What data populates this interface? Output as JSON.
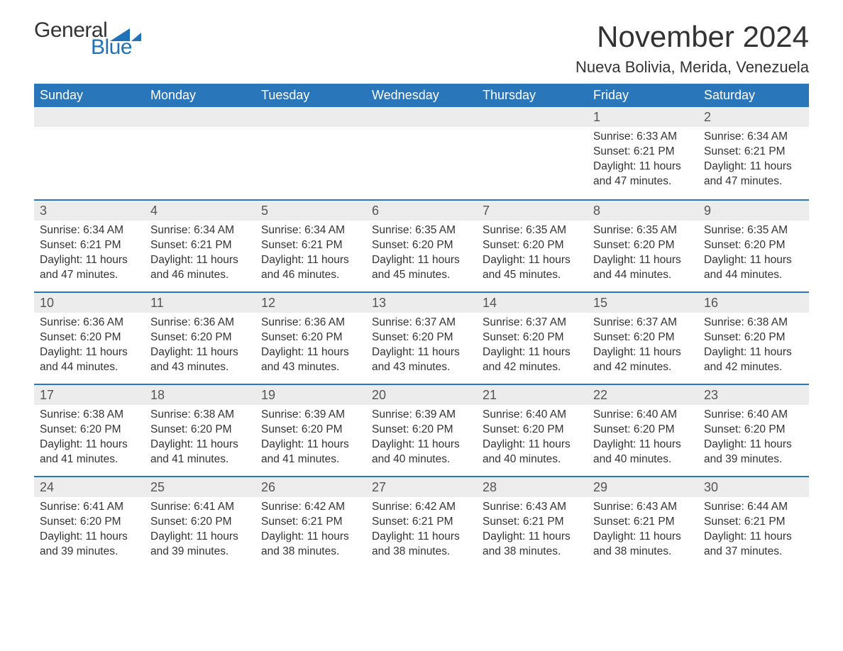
{
  "logo": {
    "word1": "General",
    "word2": "Blue",
    "tri_color": "#1f72b8"
  },
  "title": "November 2024",
  "location": "Nueva Bolivia, Merida, Venezuela",
  "colors": {
    "header_bg": "#2a76bb",
    "header_text": "#ffffff",
    "daynum_bg": "#ececec",
    "daynum_border": "#2a76bb",
    "body_text": "#333333",
    "daynum_text": "#555555",
    "logo_blue": "#1f72b8"
  },
  "typography": {
    "title_fontsize": 42,
    "location_fontsize": 22,
    "dayhdr_fontsize": 18,
    "daynum_fontsize": 18,
    "body_fontsize": 15.5
  },
  "weekdays": [
    "Sunday",
    "Monday",
    "Tuesday",
    "Wednesday",
    "Thursday",
    "Friday",
    "Saturday"
  ],
  "grid": [
    [
      null,
      null,
      null,
      null,
      null,
      {
        "n": "1",
        "sunrise": "Sunrise: 6:33 AM",
        "sunset": "Sunset: 6:21 PM",
        "day1": "Daylight: 11 hours",
        "day2": "and 47 minutes."
      },
      {
        "n": "2",
        "sunrise": "Sunrise: 6:34 AM",
        "sunset": "Sunset: 6:21 PM",
        "day1": "Daylight: 11 hours",
        "day2": "and 47 minutes."
      }
    ],
    [
      {
        "n": "3",
        "sunrise": "Sunrise: 6:34 AM",
        "sunset": "Sunset: 6:21 PM",
        "day1": "Daylight: 11 hours",
        "day2": "and 47 minutes."
      },
      {
        "n": "4",
        "sunrise": "Sunrise: 6:34 AM",
        "sunset": "Sunset: 6:21 PM",
        "day1": "Daylight: 11 hours",
        "day2": "and 46 minutes."
      },
      {
        "n": "5",
        "sunrise": "Sunrise: 6:34 AM",
        "sunset": "Sunset: 6:21 PM",
        "day1": "Daylight: 11 hours",
        "day2": "and 46 minutes."
      },
      {
        "n": "6",
        "sunrise": "Sunrise: 6:35 AM",
        "sunset": "Sunset: 6:20 PM",
        "day1": "Daylight: 11 hours",
        "day2": "and 45 minutes."
      },
      {
        "n": "7",
        "sunrise": "Sunrise: 6:35 AM",
        "sunset": "Sunset: 6:20 PM",
        "day1": "Daylight: 11 hours",
        "day2": "and 45 minutes."
      },
      {
        "n": "8",
        "sunrise": "Sunrise: 6:35 AM",
        "sunset": "Sunset: 6:20 PM",
        "day1": "Daylight: 11 hours",
        "day2": "and 44 minutes."
      },
      {
        "n": "9",
        "sunrise": "Sunrise: 6:35 AM",
        "sunset": "Sunset: 6:20 PM",
        "day1": "Daylight: 11 hours",
        "day2": "and 44 minutes."
      }
    ],
    [
      {
        "n": "10",
        "sunrise": "Sunrise: 6:36 AM",
        "sunset": "Sunset: 6:20 PM",
        "day1": "Daylight: 11 hours",
        "day2": "and 44 minutes."
      },
      {
        "n": "11",
        "sunrise": "Sunrise: 6:36 AM",
        "sunset": "Sunset: 6:20 PM",
        "day1": "Daylight: 11 hours",
        "day2": "and 43 minutes."
      },
      {
        "n": "12",
        "sunrise": "Sunrise: 6:36 AM",
        "sunset": "Sunset: 6:20 PM",
        "day1": "Daylight: 11 hours",
        "day2": "and 43 minutes."
      },
      {
        "n": "13",
        "sunrise": "Sunrise: 6:37 AM",
        "sunset": "Sunset: 6:20 PM",
        "day1": "Daylight: 11 hours",
        "day2": "and 43 minutes."
      },
      {
        "n": "14",
        "sunrise": "Sunrise: 6:37 AM",
        "sunset": "Sunset: 6:20 PM",
        "day1": "Daylight: 11 hours",
        "day2": "and 42 minutes."
      },
      {
        "n": "15",
        "sunrise": "Sunrise: 6:37 AM",
        "sunset": "Sunset: 6:20 PM",
        "day1": "Daylight: 11 hours",
        "day2": "and 42 minutes."
      },
      {
        "n": "16",
        "sunrise": "Sunrise: 6:38 AM",
        "sunset": "Sunset: 6:20 PM",
        "day1": "Daylight: 11 hours",
        "day2": "and 42 minutes."
      }
    ],
    [
      {
        "n": "17",
        "sunrise": "Sunrise: 6:38 AM",
        "sunset": "Sunset: 6:20 PM",
        "day1": "Daylight: 11 hours",
        "day2": "and 41 minutes."
      },
      {
        "n": "18",
        "sunrise": "Sunrise: 6:38 AM",
        "sunset": "Sunset: 6:20 PM",
        "day1": "Daylight: 11 hours",
        "day2": "and 41 minutes."
      },
      {
        "n": "19",
        "sunrise": "Sunrise: 6:39 AM",
        "sunset": "Sunset: 6:20 PM",
        "day1": "Daylight: 11 hours",
        "day2": "and 41 minutes."
      },
      {
        "n": "20",
        "sunrise": "Sunrise: 6:39 AM",
        "sunset": "Sunset: 6:20 PM",
        "day1": "Daylight: 11 hours",
        "day2": "and 40 minutes."
      },
      {
        "n": "21",
        "sunrise": "Sunrise: 6:40 AM",
        "sunset": "Sunset: 6:20 PM",
        "day1": "Daylight: 11 hours",
        "day2": "and 40 minutes."
      },
      {
        "n": "22",
        "sunrise": "Sunrise: 6:40 AM",
        "sunset": "Sunset: 6:20 PM",
        "day1": "Daylight: 11 hours",
        "day2": "and 40 minutes."
      },
      {
        "n": "23",
        "sunrise": "Sunrise: 6:40 AM",
        "sunset": "Sunset: 6:20 PM",
        "day1": "Daylight: 11 hours",
        "day2": "and 39 minutes."
      }
    ],
    [
      {
        "n": "24",
        "sunrise": "Sunrise: 6:41 AM",
        "sunset": "Sunset: 6:20 PM",
        "day1": "Daylight: 11 hours",
        "day2": "and 39 minutes."
      },
      {
        "n": "25",
        "sunrise": "Sunrise: 6:41 AM",
        "sunset": "Sunset: 6:20 PM",
        "day1": "Daylight: 11 hours",
        "day2": "and 39 minutes."
      },
      {
        "n": "26",
        "sunrise": "Sunrise: 6:42 AM",
        "sunset": "Sunset: 6:21 PM",
        "day1": "Daylight: 11 hours",
        "day2": "and 38 minutes."
      },
      {
        "n": "27",
        "sunrise": "Sunrise: 6:42 AM",
        "sunset": "Sunset: 6:21 PM",
        "day1": "Daylight: 11 hours",
        "day2": "and 38 minutes."
      },
      {
        "n": "28",
        "sunrise": "Sunrise: 6:43 AM",
        "sunset": "Sunset: 6:21 PM",
        "day1": "Daylight: 11 hours",
        "day2": "and 38 minutes."
      },
      {
        "n": "29",
        "sunrise": "Sunrise: 6:43 AM",
        "sunset": "Sunset: 6:21 PM",
        "day1": "Daylight: 11 hours",
        "day2": "and 38 minutes."
      },
      {
        "n": "30",
        "sunrise": "Sunrise: 6:44 AM",
        "sunset": "Sunset: 6:21 PM",
        "day1": "Daylight: 11 hours",
        "day2": "and 37 minutes."
      }
    ]
  ]
}
